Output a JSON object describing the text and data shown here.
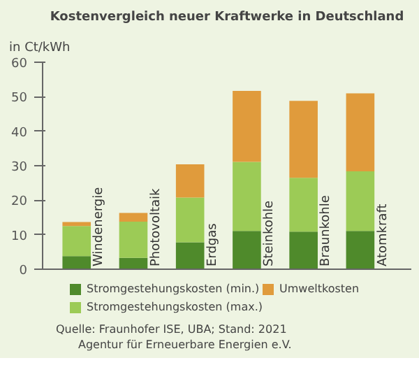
{
  "chart_data": {
    "type": "bar",
    "title": "Kostenvergleich neuer Kraftwerke in Deutschland",
    "ylabel": "in Ct/kWh",
    "categories": [
      "Windenergie",
      "Photovoltaik",
      "Erdgas",
      "Steinkohle",
      "Braunkohle",
      "Atomkraft"
    ],
    "stacked": true,
    "series": [
      {
        "name": "Stromgestehungskosten (min.)",
        "color": "#4f8a2b",
        "values": [
          3.8,
          3.3,
          7.8,
          11.1,
          10.9,
          11.1
        ]
      },
      {
        "name": "Stromgestehungskosten (max.)",
        "color": "#9ccb56",
        "values": [
          8.7,
          10.5,
          13.0,
          20.0,
          15.6,
          17.3
        ]
      },
      {
        "name": "Umweltkosten",
        "color": "#e09b3c",
        "values": [
          1.2,
          2.5,
          9.6,
          20.6,
          22.3,
          22.6
        ]
      }
    ],
    "ylim": [
      0,
      60
    ],
    "yticks": [
      0,
      10,
      20,
      30,
      40,
      50,
      60
    ],
    "grid": false,
    "legend": "bottom",
    "annotations": [
      "Quelle: Fraunhofer ISE, UBA; Stand: 2021",
      "Agentur für Erneuerbare Energien e.V."
    ]
  }
}
